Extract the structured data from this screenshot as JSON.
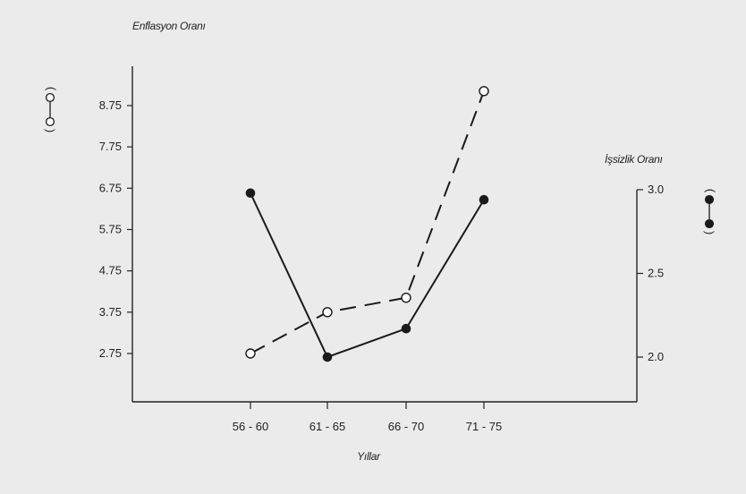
{
  "chart_data": {
    "type": "line",
    "title": "",
    "xlabel": "Yıllar",
    "categories": [
      "56 - 60",
      "61 - 65",
      "66 - 70",
      "71 - 75"
    ],
    "left_axis": {
      "label": "Enflasyon Oranı",
      "ticks": [
        2.75,
        3.75,
        4.75,
        5.75,
        6.75,
        7.75,
        8.75
      ],
      "tick_labels": [
        "2.75",
        "3.75",
        "4.75",
        "5.75",
        "6.75",
        "7.75",
        "8.75"
      ],
      "range": [
        0.7,
        10.8
      ]
    },
    "right_axis": {
      "label": "İşsizlik Oranı",
      "ticks": [
        2.0,
        2.5,
        3.0
      ],
      "tick_labels": [
        "2.0",
        "2.5",
        "3.0"
      ],
      "range": [
        1.75,
        3.05
      ]
    },
    "series": [
      {
        "axis": "left",
        "style": "dashed",
        "marker": "open-circle",
        "values": [
          2.75,
          3.75,
          4.1,
          9.1
        ]
      },
      {
        "axis": "right",
        "style": "solid",
        "marker": "filled-circle",
        "values": [
          2.98,
          2.0,
          2.17,
          2.94
        ]
      }
    ],
    "grid": false,
    "legend": "side-markers"
  }
}
